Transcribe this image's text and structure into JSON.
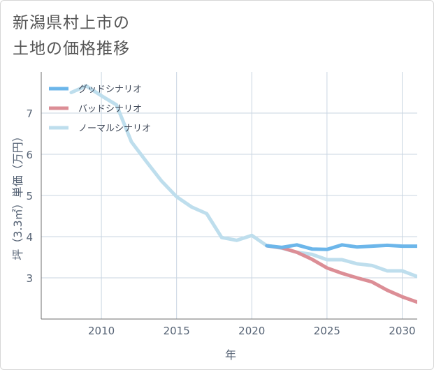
{
  "title_lines": [
    "新潟県村上市の",
    "土地の価格推移"
  ],
  "chart_data": {
    "type": "line",
    "xlabel": "年",
    "ylabel": "坪（3.3㎡）単価（万円）",
    "xlim": [
      2006,
      2031
    ],
    "ylim": [
      2,
      8
    ],
    "xticks": [
      2010,
      2015,
      2020,
      2025,
      2030
    ],
    "yticks": [
      3,
      4,
      5,
      6,
      7
    ],
    "grid": true,
    "legend_position": "top-left",
    "series": [
      {
        "name": "グッドシナリオ",
        "color": "#6cb6ea",
        "x": [
          2021,
          2022,
          2023,
          2024,
          2025,
          2026,
          2027,
          2028,
          2029,
          2030,
          2031
        ],
        "y": [
          3.78,
          3.74,
          3.8,
          3.7,
          3.69,
          3.8,
          3.75,
          3.77,
          3.79,
          3.77,
          3.77
        ]
      },
      {
        "name": "バッドシナリオ",
        "color": "#dc8e96",
        "x": [
          2021,
          2022,
          2023,
          2024,
          2025,
          2026,
          2027,
          2028,
          2029,
          2030,
          2031
        ],
        "y": [
          3.78,
          3.73,
          3.62,
          3.45,
          3.24,
          3.11,
          3.0,
          2.9,
          2.7,
          2.54,
          2.41
        ]
      },
      {
        "name": "ノーマルシナリオ",
        "color": "#bedeed",
        "x": [
          2008,
          2009,
          2010,
          2011,
          2012,
          2013,
          2014,
          2015,
          2016,
          2017,
          2018,
          2019,
          2020,
          2021,
          2022,
          2023,
          2024,
          2025,
          2026,
          2027,
          2028,
          2029,
          2030,
          2031
        ],
        "y": [
          7.5,
          7.66,
          7.42,
          7.2,
          6.3,
          5.82,
          5.35,
          4.97,
          4.72,
          4.56,
          3.98,
          3.91,
          4.03,
          3.78,
          3.72,
          3.62,
          3.57,
          3.44,
          3.44,
          3.34,
          3.3,
          3.17,
          3.17,
          3.03
        ]
      }
    ]
  }
}
